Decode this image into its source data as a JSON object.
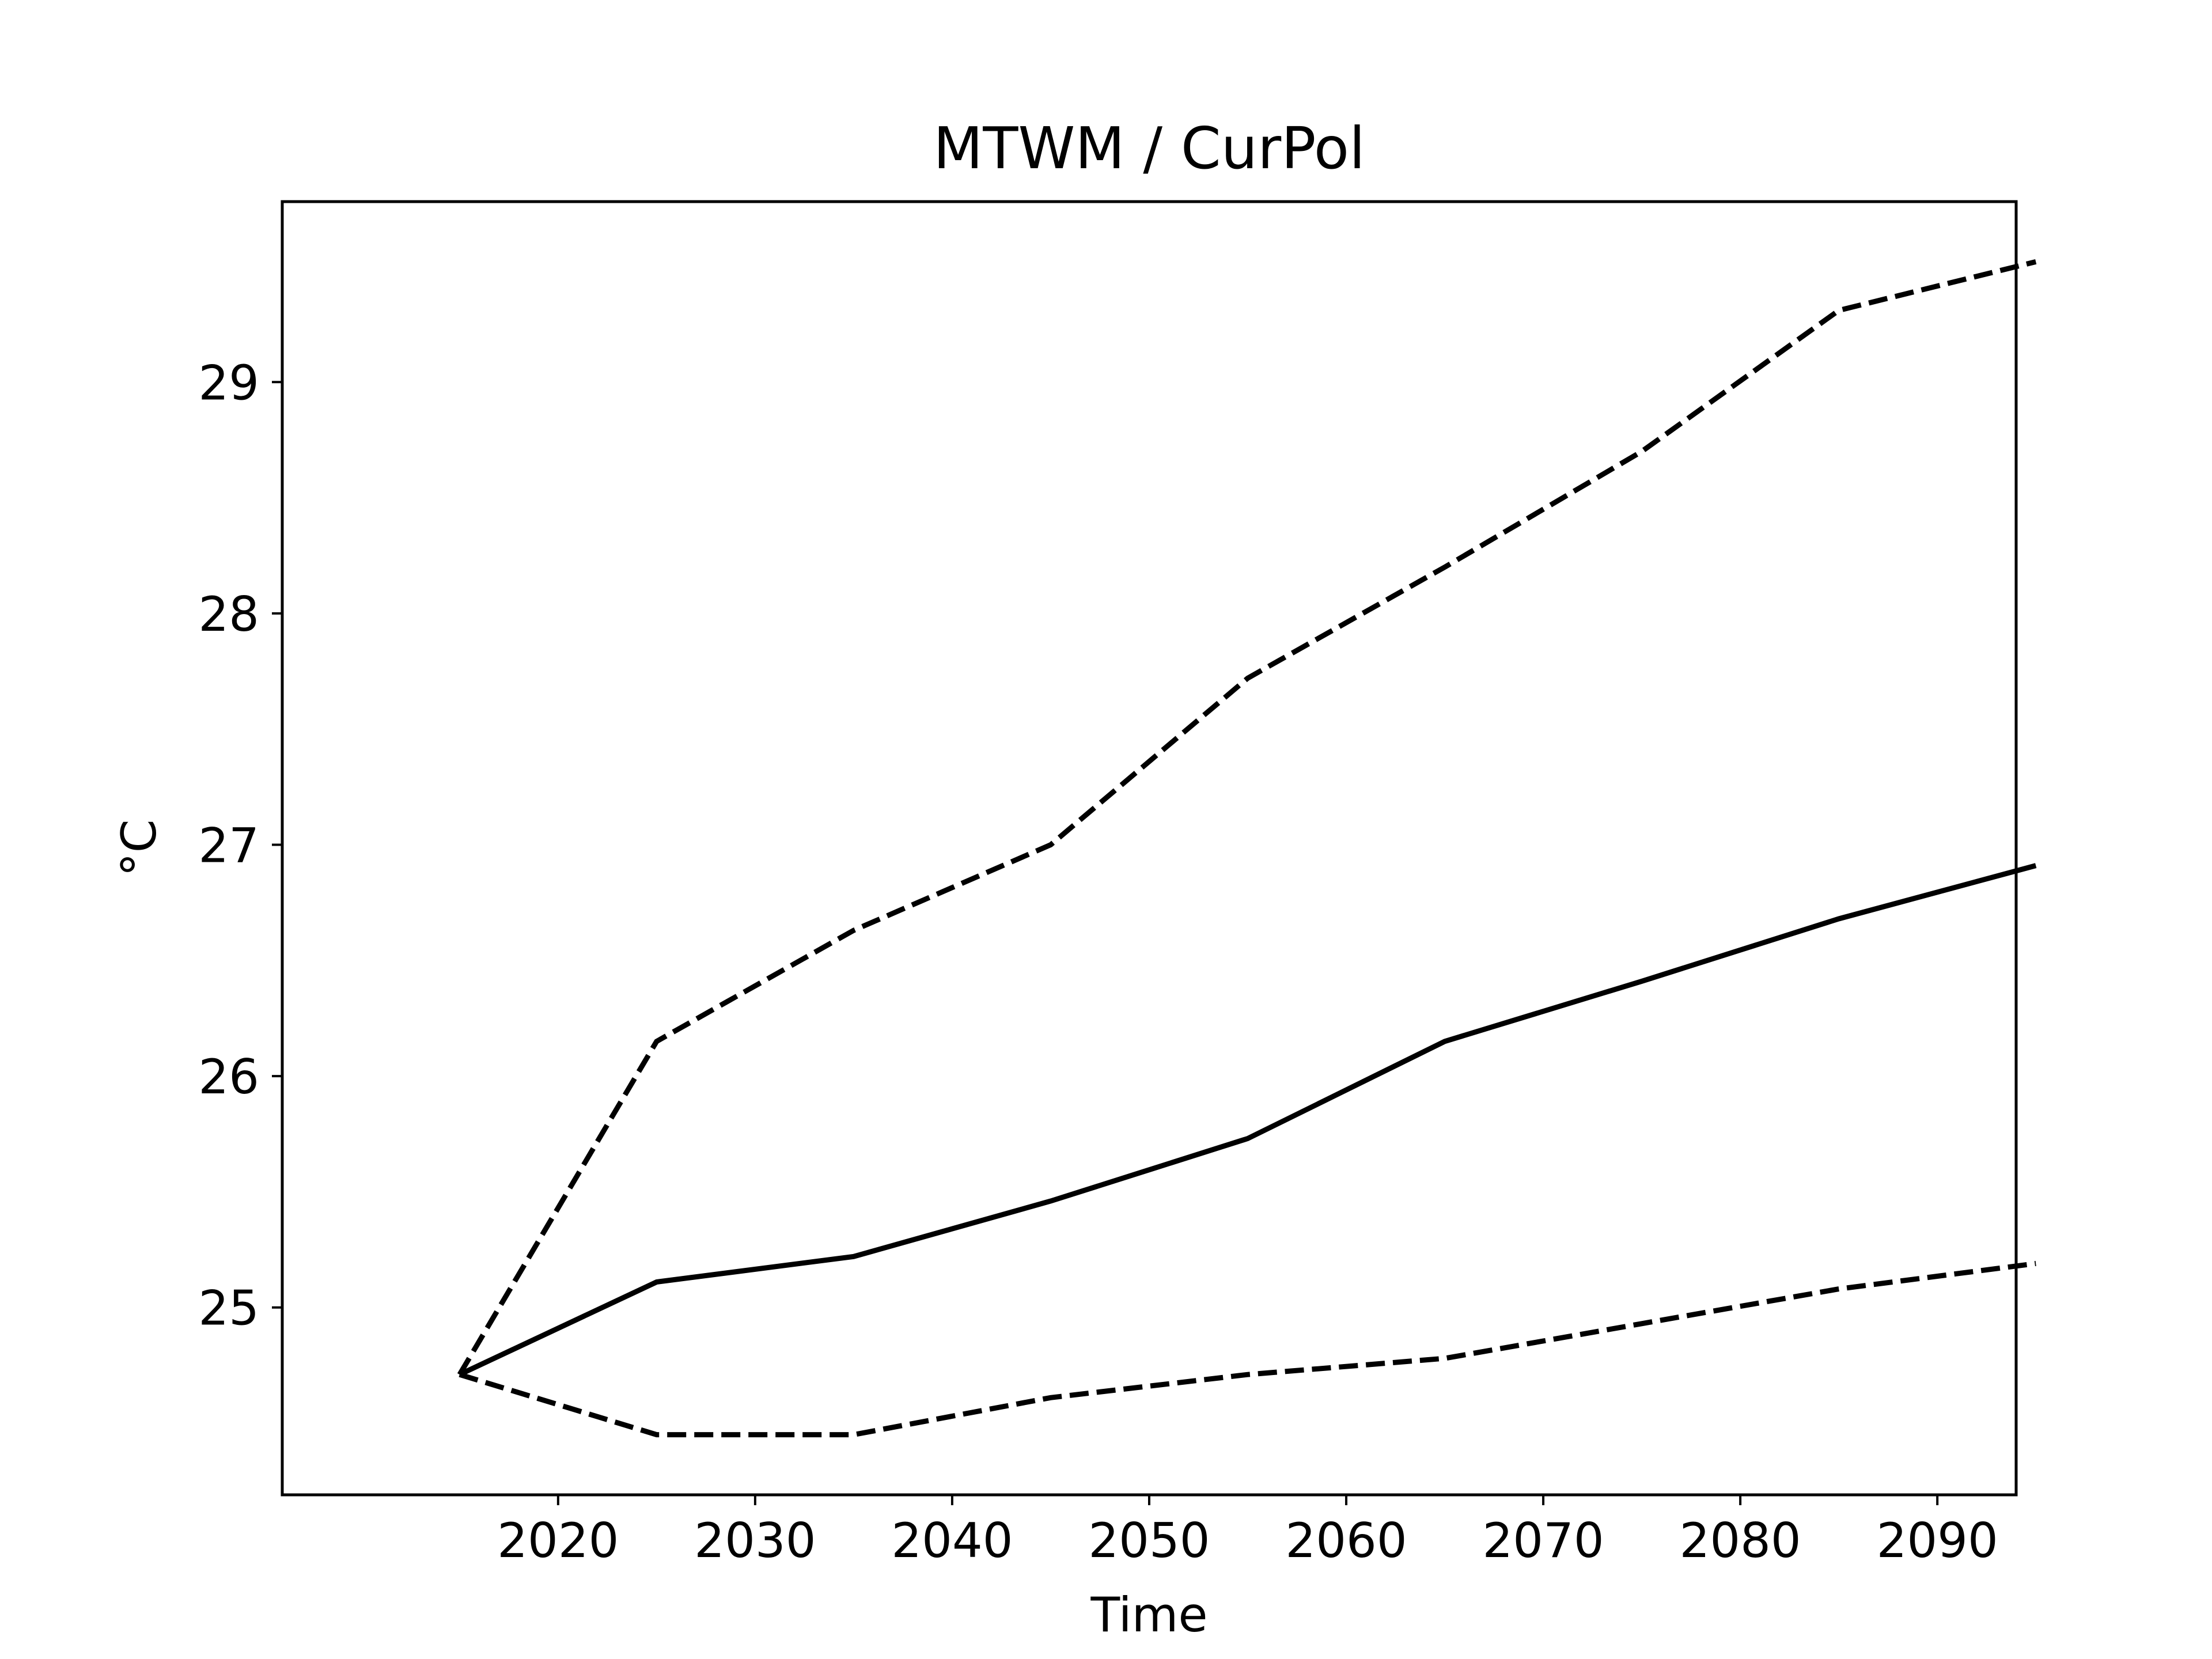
{
  "chart_data": {
    "type": "line",
    "title": "MTWM / CurPol",
    "xlabel": "Time",
    "ylabel": "°C",
    "x": [
      2015,
      2025,
      2035,
      2045,
      2055,
      2065,
      2075,
      2085,
      2095
    ],
    "xlim": [
      2006,
      2094
    ],
    "ylim": [
      24.19,
      29.78
    ],
    "xticks": [
      2020,
      2030,
      2040,
      2050,
      2060,
      2070,
      2080,
      2090
    ],
    "yticks": [
      25,
      26,
      27,
      28,
      29
    ],
    "grid": false,
    "legend": "none",
    "series": [
      {
        "style": "solid",
        "color": "#000000",
        "values": [
          24.71,
          25.11,
          25.22,
          25.46,
          25.73,
          26.15,
          26.41,
          26.68,
          26.91
        ]
      },
      {
        "style": "dashed",
        "color": "#000000",
        "values": [
          24.71,
          26.15,
          26.63,
          27.0,
          27.72,
          28.2,
          28.7,
          29.31,
          29.52
        ]
      },
      {
        "style": "dashed",
        "color": "#000000",
        "values": [
          24.71,
          24.45,
          24.45,
          24.61,
          24.71,
          24.78,
          24.93,
          25.08,
          25.19
        ]
      }
    ]
  }
}
